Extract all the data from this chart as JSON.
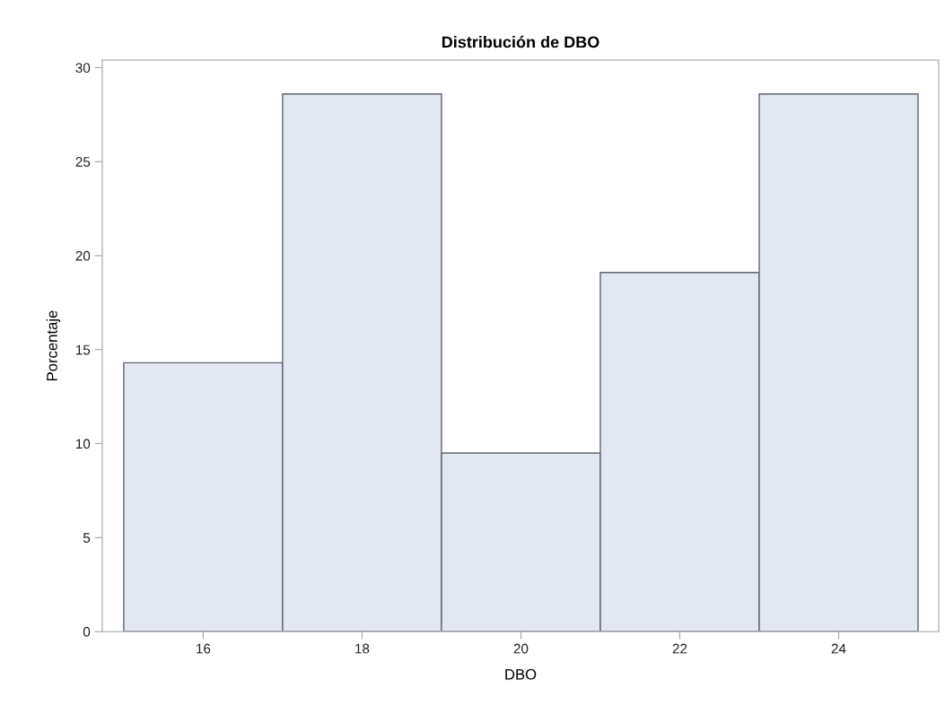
{
  "chart_data": {
    "type": "histogram",
    "title": "Distribución de DBO",
    "xlabel": "DBO",
    "ylabel": "Porcentaje",
    "bins": [
      15,
      17,
      19,
      21,
      23,
      25
    ],
    "values": [
      14.3,
      28.6,
      9.5,
      19.1,
      28.6
    ],
    "color": "#e3e7f1",
    "xlim": [
      14.73,
      25.26
    ],
    "ylim": [
      0,
      30.4
    ],
    "xticks": [
      16,
      18,
      20,
      22,
      24
    ],
    "yticks": [
      0,
      5,
      10,
      15,
      20,
      25,
      30
    ],
    "grid": false
  }
}
